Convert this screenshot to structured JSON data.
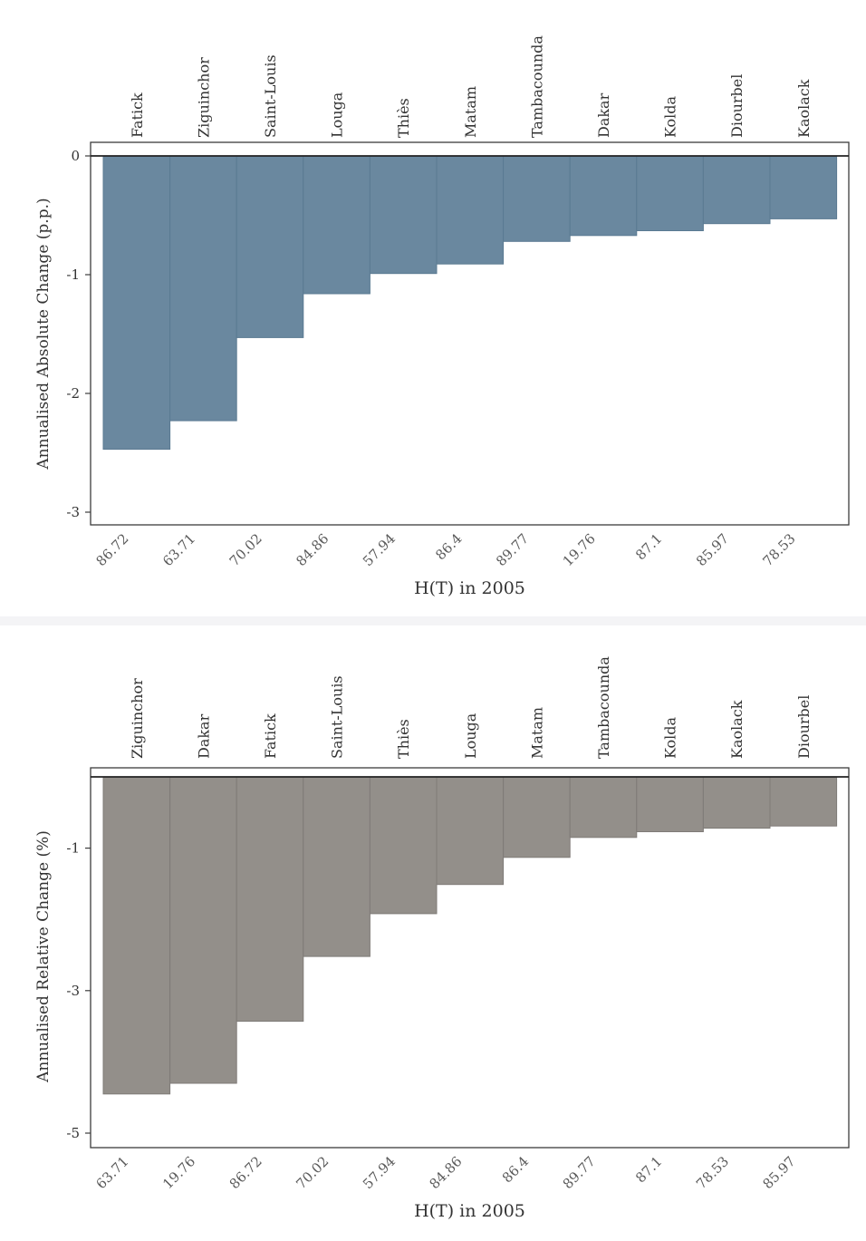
{
  "charts": [
    {
      "type": "bar",
      "ylabel": "Annualised Absolute Change (p.p.)",
      "xlabel": "H(T) in 2005",
      "categories": [
        "Fatick",
        "Ziguinchor",
        "Saint-Louis",
        "Louga",
        "Thiès",
        "Matam",
        "Tambacounda",
        "Dakar",
        "Kolda",
        "Diourbel",
        "Kaolack"
      ],
      "h_values": [
        "86.72",
        "63.71",
        "70.02",
        "84.86",
        "57.94",
        "86.4",
        "89.77",
        "19.76",
        "87.1",
        "85.97",
        "78.53"
      ],
      "values": [
        -2.47,
        -2.23,
        -1.53,
        -1.16,
        -0.99,
        -0.91,
        -0.72,
        -0.67,
        -0.63,
        -0.57,
        -0.53
      ],
      "ylim": [
        -3.1,
        0.1
      ],
      "yticks": [
        {
          "v": 0,
          "label": "0"
        },
        {
          "v": -1,
          "label": "-1"
        },
        {
          "v": -2,
          "label": "-2"
        },
        {
          "v": -3,
          "label": "-3"
        }
      ],
      "bar_color": "#6a889f",
      "bar_edge": "#5a7a92"
    },
    {
      "type": "bar",
      "ylabel": "Annualised Relative Change (%)",
      "xlabel": "H(T) in 2005",
      "categories": [
        "Ziguinchor",
        "Dakar",
        "Fatick",
        "Saint-Louis",
        "Thiès",
        "Louga",
        "Matam",
        "Tambacounda",
        "Kolda",
        "Kaolack",
        "Diourbel"
      ],
      "h_values": [
        "63.71",
        "19.76",
        "86.72",
        "70.02",
        "57.94",
        "84.86",
        "86.4",
        "89.77",
        "87.1",
        "78.53",
        "85.97"
      ],
      "values": [
        -4.45,
        -4.3,
        -3.43,
        -2.52,
        -1.92,
        -1.51,
        -1.13,
        -0.85,
        -0.77,
        -0.72,
        -0.69
      ],
      "ylim": [
        -5.2,
        0.0
      ],
      "yticks": [
        {
          "v": -1,
          "label": "-1"
        },
        {
          "v": -3,
          "label": "-3"
        },
        {
          "v": -5,
          "label": "-5"
        }
      ],
      "bar_color": "#938f8a",
      "bar_edge": "#7f7b77"
    }
  ]
}
